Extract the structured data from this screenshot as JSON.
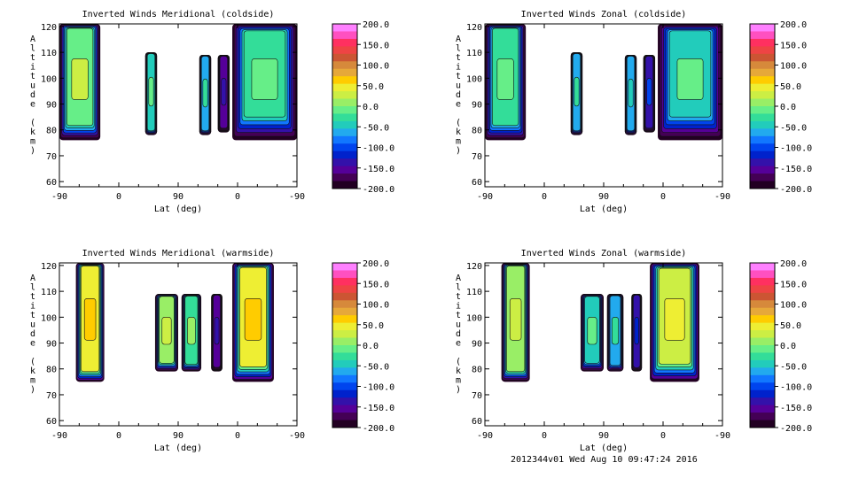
{
  "footer": "2012344v01 Wed Aug 10 09:47:24 2016",
  "colorbar": {
    "labels": [
      "200.0",
      "150.0",
      "100.0",
      "50.0",
      "0.0",
      "-50.0",
      "-100.0",
      "-150.0",
      "-200.0"
    ],
    "colors": [
      "#ff80ff",
      "#ff50c0",
      "#ff3060",
      "#ee4444",
      "#cc5533",
      "#d6893b",
      "#e6a83a",
      "#ffcc00",
      "#eeee33",
      "#ccee44",
      "#99ee66",
      "#66ee88",
      "#33dd99",
      "#22ccbb",
      "#22aaee",
      "#1177ff",
      "#0044ee",
      "#0022cc",
      "#3311aa",
      "#550099",
      "#440055",
      "#220022"
    ]
  },
  "chart_data": [
    {
      "type": "heatmap",
      "title": "Inverted Winds Meridional (coldside)",
      "xlabel": "Lat (deg)",
      "ylabel": "Altitude (km)",
      "x_ticks": [
        "-90",
        "0",
        "90",
        "0",
        "-90"
      ],
      "y_ticks": [
        "60",
        "70",
        "80",
        "90",
        "100",
        "110",
        "120"
      ],
      "ylim": [
        58,
        121
      ],
      "value_range": [
        -200,
        200
      ],
      "regions": [
        {
          "x": [
            -90,
            -28
          ],
          "y": [
            76,
            121
          ],
          "mean": -5
        },
        {
          "x": [
            40,
            58
          ],
          "y": [
            78,
            110
          ],
          "mean": -40
        },
        {
          "x": [
            122,
            140
          ],
          "y": [
            78,
            109
          ],
          "mean": -60
        },
        {
          "x": [
            150,
            168
          ],
          "y": [
            79,
            109
          ],
          "mean": -160
        },
        {
          "x": [
            172,
            270
          ],
          "y": [
            76,
            121
          ],
          "mean": -25
        }
      ]
    },
    {
      "type": "heatmap",
      "title": "Inverted Winds Zonal (coldside)",
      "xlabel": "Lat (deg)",
      "ylabel": "Altitude (km)",
      "x_ticks": [
        "-90",
        "0",
        "90",
        "0",
        "-90"
      ],
      "y_ticks": [
        "60",
        "70",
        "80",
        "90",
        "100",
        "110",
        "120"
      ],
      "ylim": [
        58,
        121
      ],
      "value_range": [
        -200,
        200
      ],
      "regions": [
        {
          "x": [
            -90,
            -28
          ],
          "y": [
            76,
            121
          ],
          "mean": -30
        },
        {
          "x": [
            40,
            58
          ],
          "y": [
            78,
            110
          ],
          "mean": -60
        },
        {
          "x": [
            122,
            140
          ],
          "y": [
            78,
            109
          ],
          "mean": -70
        },
        {
          "x": [
            150,
            168
          ],
          "y": [
            79,
            109
          ],
          "mean": -130
        },
        {
          "x": [
            172,
            270
          ],
          "y": [
            76,
            121
          ],
          "mean": -40
        }
      ]
    },
    {
      "type": "heatmap",
      "title": "Inverted Winds Meridional (warmside)",
      "xlabel": "Lat (deg)",
      "ylabel": "Altitude (km)",
      "x_ticks": [
        "-90",
        "0",
        "90",
        "0",
        "-90"
      ],
      "y_ticks": [
        "60",
        "70",
        "80",
        "90",
        "100",
        "110",
        "120"
      ],
      "ylim": [
        58,
        121
      ],
      "value_range": [
        -200,
        200
      ],
      "regions": [
        {
          "x": [
            -65,
            -22
          ],
          "y": [
            75,
            121
          ],
          "mean": 40
        },
        {
          "x": [
            55,
            90
          ],
          "y": [
            79,
            109
          ],
          "mean": 10
        },
        {
          "x": [
            95,
            125
          ],
          "y": [
            79,
            109
          ],
          "mean": -20
        },
        {
          "x": [
            140,
            157
          ],
          "y": [
            79,
            109
          ],
          "mean": -160
        },
        {
          "x": [
            172,
            235
          ],
          "y": [
            75,
            121
          ],
          "mean": 40
        }
      ]
    },
    {
      "type": "heatmap",
      "title": "Inverted Winds Zonal (warmside)",
      "xlabel": "Lat (deg)",
      "ylabel": "Altitude (km)",
      "x_ticks": [
        "-90",
        "0",
        "90",
        "0",
        "-90"
      ],
      "y_ticks": [
        "60",
        "70",
        "80",
        "90",
        "100",
        "110",
        "120"
      ],
      "ylim": [
        58,
        121
      ],
      "value_range": [
        -200,
        200
      ],
      "regions": [
        {
          "x": [
            -65,
            -22
          ],
          "y": [
            75,
            121
          ],
          "mean": 5
        },
        {
          "x": [
            55,
            90
          ],
          "y": [
            79,
            109
          ],
          "mean": -40
        },
        {
          "x": [
            95,
            120
          ],
          "y": [
            79,
            109
          ],
          "mean": -60
        },
        {
          "x": [
            132,
            148
          ],
          "y": [
            79,
            109
          ],
          "mean": -140
        },
        {
          "x": [
            160,
            235
          ],
          "y": [
            75,
            121
          ],
          "mean": 20
        }
      ]
    }
  ]
}
